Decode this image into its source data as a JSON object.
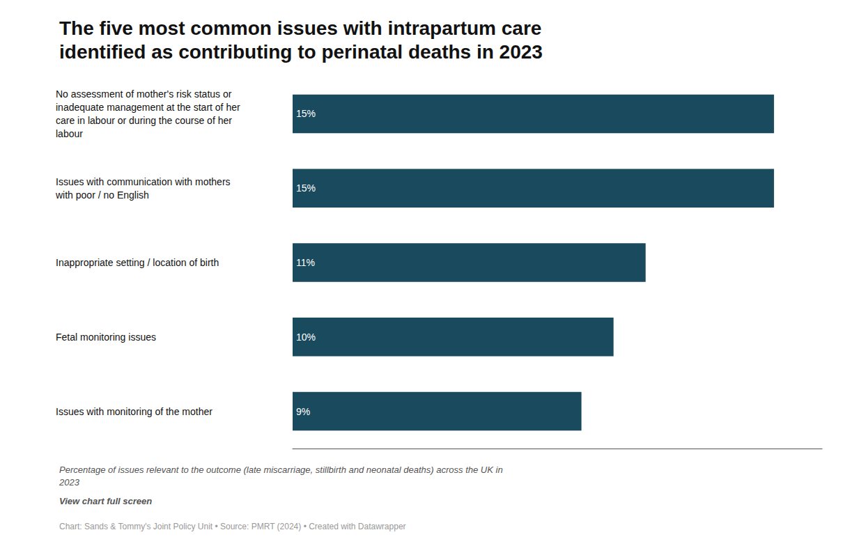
{
  "chart_data": {
    "type": "bar",
    "orientation": "horizontal",
    "title": "The five most common issues with intrapartum care\nidentified as contributing to perinatal deaths in 2023",
    "subtitle": "Percentage of issues relevant to the outcome (late miscarriage, stillbirth and neonatal deaths) across the UK in\n2023",
    "annotations": [
      "View chart full screen",
      "Chart: Sands & Tommy's Joint Policy Unit • Source: PMRT (2024) • Created with Datawrapper"
    ],
    "categories": [
      "No assessment of mother's risk status or\ninadequate management at the start of her\ncare in labour or during the course of her\nlabour",
      "Issues with communication with mothers\nwith poor / no English",
      "Inappropriate setting / location of birth",
      "Fetal monitoring issues",
      "Issues with monitoring of the mother"
    ],
    "values": [
      15,
      15,
      11,
      10,
      9
    ],
    "value_labels": [
      "15%",
      "15%",
      "11%",
      "10%",
      "9%"
    ],
    "data_labels": true,
    "color": "#1a4a5e",
    "xlim": [
      0,
      16.5
    ],
    "grid": false,
    "tick_labels": "y"
  }
}
